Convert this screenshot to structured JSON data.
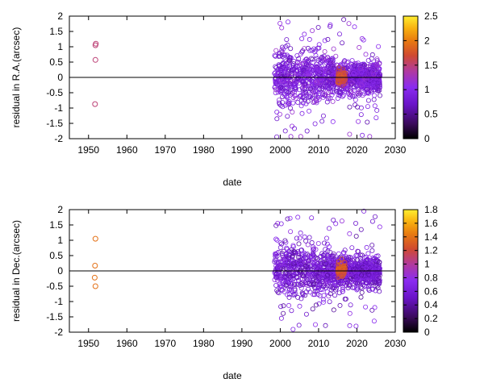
{
  "chart_data": [
    {
      "type": "scatter",
      "xlabel": "date",
      "ylabel": "residual in R.A.(arcsec)",
      "xlim": [
        1945,
        2030
      ],
      "ylim": [
        -2,
        2
      ],
      "xticks": [
        "1950",
        "1960",
        "1970",
        "1980",
        "1990",
        "2000",
        "2010",
        "2020",
        "2030"
      ],
      "yticks": [
        "2",
        "1.5",
        "1",
        "0.5",
        "0",
        "-0.5",
        "-1",
        "-1.5",
        "-2"
      ],
      "grid": false,
      "colorbar": {
        "range": [
          0,
          2.5
        ],
        "ticks": [
          "2.5",
          "2",
          "1.5",
          "1",
          "0.5",
          "0"
        ]
      },
      "reference_line_y": 0,
      "early_points": [
        {
          "x": 1951.9,
          "y": 1.1,
          "c": 1.5
        },
        {
          "x": 1951.8,
          "y": 1.05,
          "c": 1.5
        },
        {
          "x": 1951.8,
          "y": 0.57,
          "c": 1.5
        },
        {
          "x": 1951.7,
          "y": -0.87,
          "c": 1.5
        }
      ],
      "modern_cloud": {
        "x_range": [
          1998,
          2026
        ],
        "y_range": [
          -2,
          2
        ],
        "dominant_c": 0.9,
        "dense_cluster_x": [
          2015,
          2017
        ],
        "dense_cluster_c": 1.6
      }
    },
    {
      "type": "scatter",
      "xlabel": "date",
      "ylabel": "residual in Dec.(arcsec)",
      "xlim": [
        1945,
        2030
      ],
      "ylim": [
        -2,
        2
      ],
      "xticks": [
        "1950",
        "1960",
        "1970",
        "1980",
        "1990",
        "2000",
        "2010",
        "2020",
        "2030"
      ],
      "yticks": [
        "2",
        "1.5",
        "1",
        "0.5",
        "0",
        "-0.5",
        "-1",
        "-1.5",
        "-2"
      ],
      "grid": false,
      "colorbar": {
        "range": [
          0,
          1.8
        ],
        "ticks": [
          "1.8",
          "1.6",
          "1.4",
          "1.2",
          "1",
          "0.8",
          "0.6",
          "0.4",
          "0.2",
          "0"
        ]
      },
      "reference_line_y": 0,
      "early_points": [
        {
          "x": 1951.8,
          "y": 1.05,
          "c": 1.4
        },
        {
          "x": 1951.7,
          "y": 0.17,
          "c": 1.4
        },
        {
          "x": 1951.6,
          "y": -0.22,
          "c": 1.4
        },
        {
          "x": 1951.8,
          "y": -0.5,
          "c": 1.4
        }
      ],
      "modern_cloud": {
        "x_range": [
          1998,
          2026
        ],
        "y_range": [
          -2,
          2
        ],
        "dominant_c": 0.6,
        "dense_cluster_x": [
          2015,
          2017
        ],
        "dense_cluster_c": 1.2
      }
    }
  ]
}
